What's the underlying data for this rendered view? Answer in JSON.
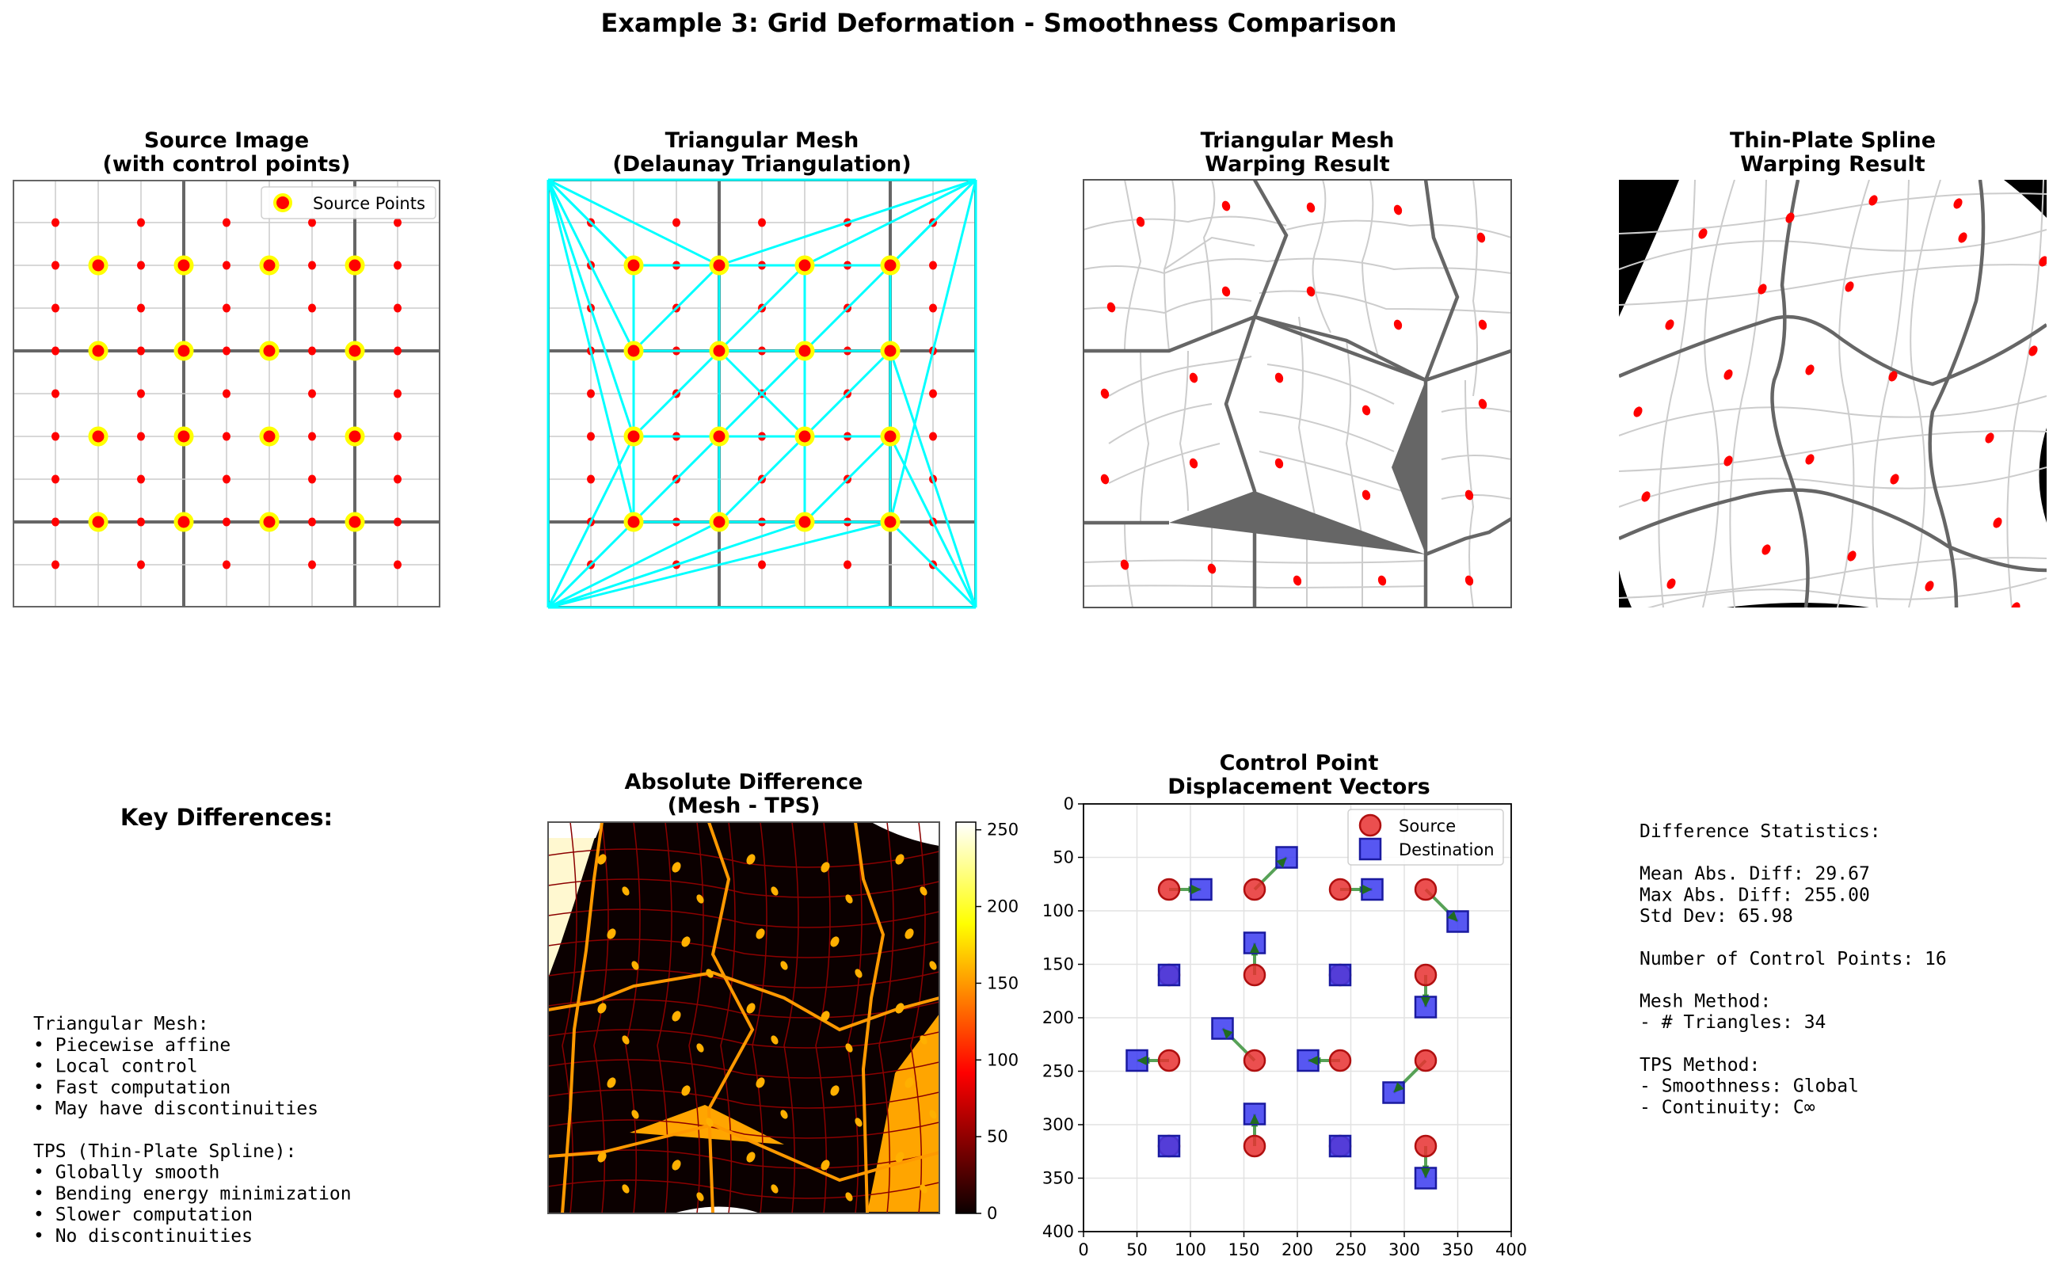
{
  "figure": {
    "title": "Example 3: Grid Deformation - Smoothness Comparison"
  },
  "panels": {
    "source": {
      "title_line1": "Source Image",
      "title_line2": "(with control points)",
      "legend_label": "Source Points"
    },
    "mesh": {
      "title_line1": "Triangular Mesh",
      "title_line2": "(Delaunay Triangulation)"
    },
    "mesh_warp": {
      "title_line1": "Triangular Mesh",
      "title_line2": "Warping Result"
    },
    "tps_warp": {
      "title_line1": "Thin-Plate Spline",
      "title_line2": "Warping Result"
    },
    "key_differences": {
      "heading": "Key Differences:",
      "lines": [
        "Triangular Mesh:",
        "• Piecewise affine",
        "• Local control",
        "• Fast computation",
        "• May have discontinuities",
        "",
        "TPS (Thin-Plate Spline):",
        "• Globally smooth",
        "• Bending energy minimization",
        "• Slower computation",
        "• No discontinuities"
      ]
    },
    "abs_diff": {
      "title_line1": "Absolute Difference",
      "title_line2": "(Mesh - TPS)",
      "colorbar_ticks": [
        "0",
        "50",
        "100",
        "150",
        "200",
        "250"
      ]
    },
    "stats": {
      "lines": [
        "Difference Statistics:",
        "",
        "Mean Abs. Diff: 29.67",
        "Max Abs. Diff: 255.00",
        "Std Dev: 65.98",
        "",
        "Number of Control Points: 16",
        "",
        "Mesh Method:",
        "- # Triangles: 34",
        "",
        "TPS Method:",
        "- Smoothness: Global",
        "- Continuity: C∞"
      ]
    }
  },
  "colors": {
    "source_marker": "#ff0000",
    "source_marker_edge": "#ffff00",
    "mesh_edges": "#00ffff",
    "grid_minor": "#cccccc",
    "grid_major": "#666666",
    "disp_source": "#e83030",
    "disp_dest": "#3a3af0",
    "disp_arrow": "#2e8b2e"
  },
  "chart_data": {
    "type": "scatter",
    "title": "Control Point\nDisplacement Vectors",
    "title_line1": "Control Point",
    "title_line2": "Displacement Vectors",
    "xlim": [
      0,
      400
    ],
    "ylim": [
      400,
      0
    ],
    "y_inverted": true,
    "grid": true,
    "legend_position": "top-right",
    "x_ticks": [
      "0",
      "50",
      "100",
      "150",
      "200",
      "250",
      "300",
      "350",
      "400"
    ],
    "y_ticks": [
      "0",
      "50",
      "100",
      "150",
      "200",
      "250",
      "300",
      "350",
      "400"
    ],
    "series": [
      {
        "name": "Source",
        "marker": "circle",
        "points": [
          [
            80,
            80
          ],
          [
            160,
            80
          ],
          [
            240,
            80
          ],
          [
            320,
            80
          ],
          [
            80,
            160
          ],
          [
            160,
            160
          ],
          [
            240,
            160
          ],
          [
            320,
            160
          ],
          [
            80,
            240
          ],
          [
            160,
            240
          ],
          [
            240,
            240
          ],
          [
            320,
            240
          ],
          [
            80,
            320
          ],
          [
            160,
            320
          ],
          [
            240,
            320
          ],
          [
            320,
            320
          ]
        ]
      },
      {
        "name": "Destination",
        "marker": "square",
        "points": [
          [
            110,
            80
          ],
          [
            190,
            50
          ],
          [
            270,
            80
          ],
          [
            350,
            110
          ],
          [
            80,
            160
          ],
          [
            160,
            130
          ],
          [
            240,
            160
          ],
          [
            320,
            190
          ],
          [
            50,
            240
          ],
          [
            130,
            210
          ],
          [
            210,
            240
          ],
          [
            290,
            270
          ],
          [
            80,
            320
          ],
          [
            160,
            290
          ],
          [
            240,
            320
          ],
          [
            320,
            350
          ]
        ]
      }
    ]
  }
}
